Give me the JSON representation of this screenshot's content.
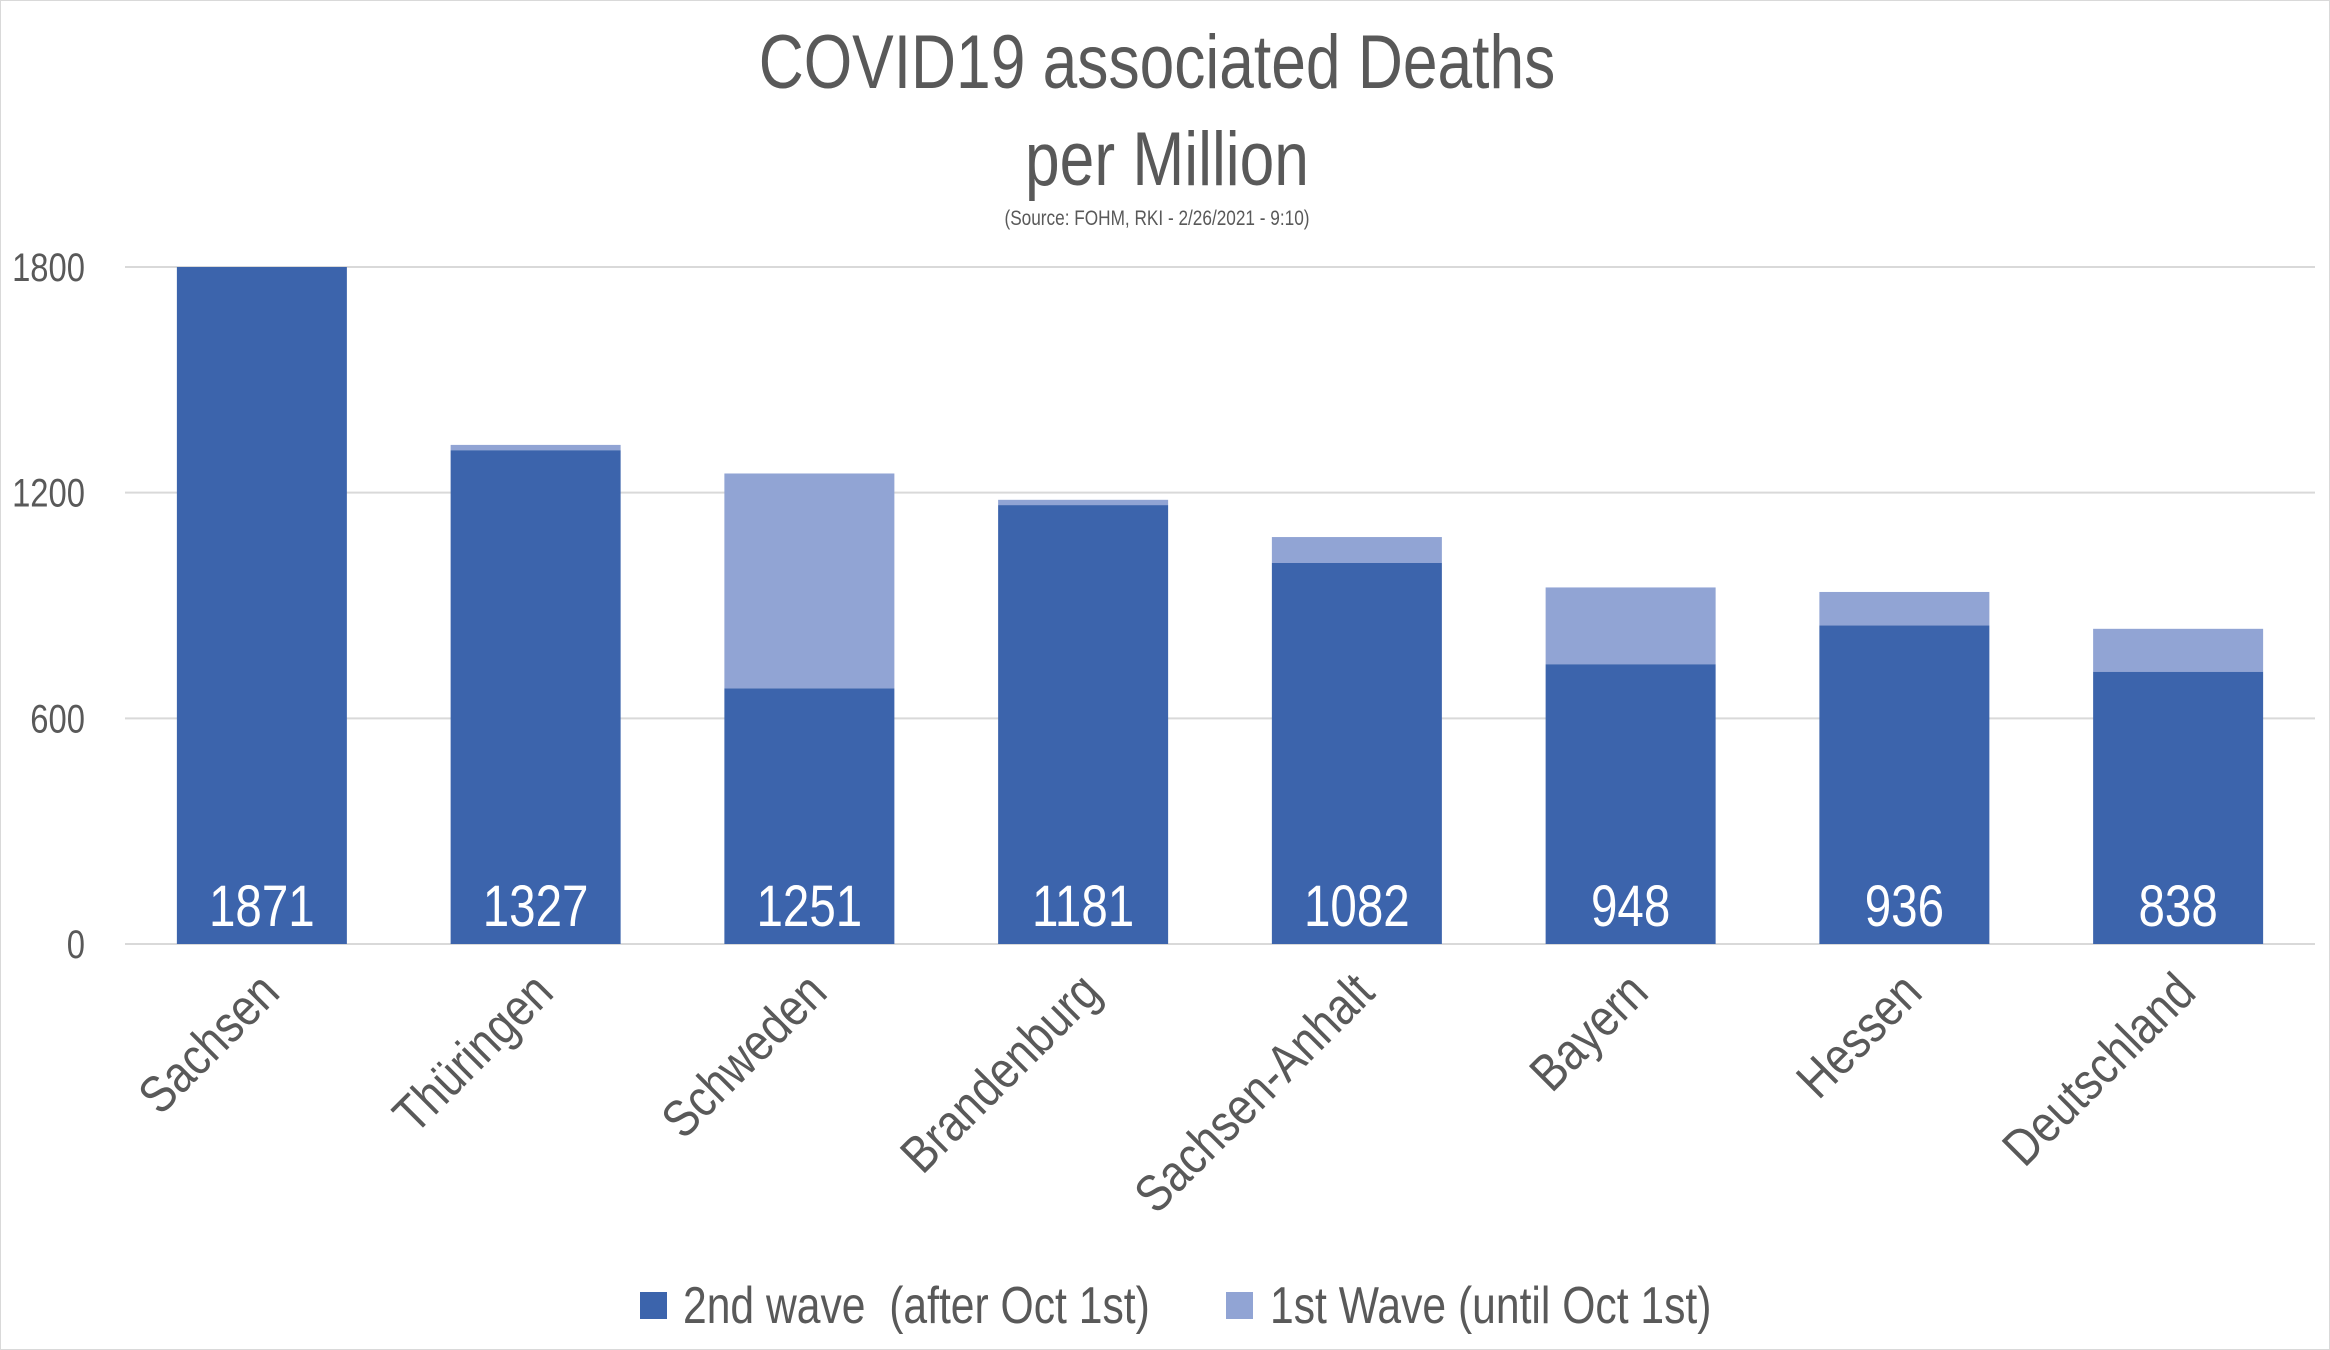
{
  "chart_data": {
    "type": "bar",
    "stacked": true,
    "title": "COVID19 associated Deaths",
    "title_line2": "per Million",
    "subtitle": "(Source: FOHM, RKI - 2/26/2021 - 9:10)",
    "xlabel": "",
    "ylabel": "",
    "ylim": [
      0,
      1800
    ],
    "yticks": [
      0,
      600,
      1200,
      1800
    ],
    "grid": true,
    "legend_position": "bottom",
    "categories": [
      "Sachsen",
      "Thüringen",
      "Schweden",
      "Brandenburg",
      "Sachsen-Anhalt",
      "Bayern",
      "Hessen",
      "Deutschland"
    ],
    "totals": [
      1871,
      1327,
      1251,
      1181,
      1082,
      948,
      936,
      838
    ],
    "series": [
      {
        "name": "2nd wave  (after Oct 1st)",
        "color": "#3c64ac",
        "values": [
          1851,
          1313,
          680,
          1167,
          1013,
          744,
          847,
          724
        ]
      },
      {
        "name": "1st Wave (until Oct 1st)",
        "color": "#91a4d4",
        "values": [
          20,
          14,
          571,
          14,
          69,
          204,
          89,
          114
        ]
      }
    ]
  }
}
